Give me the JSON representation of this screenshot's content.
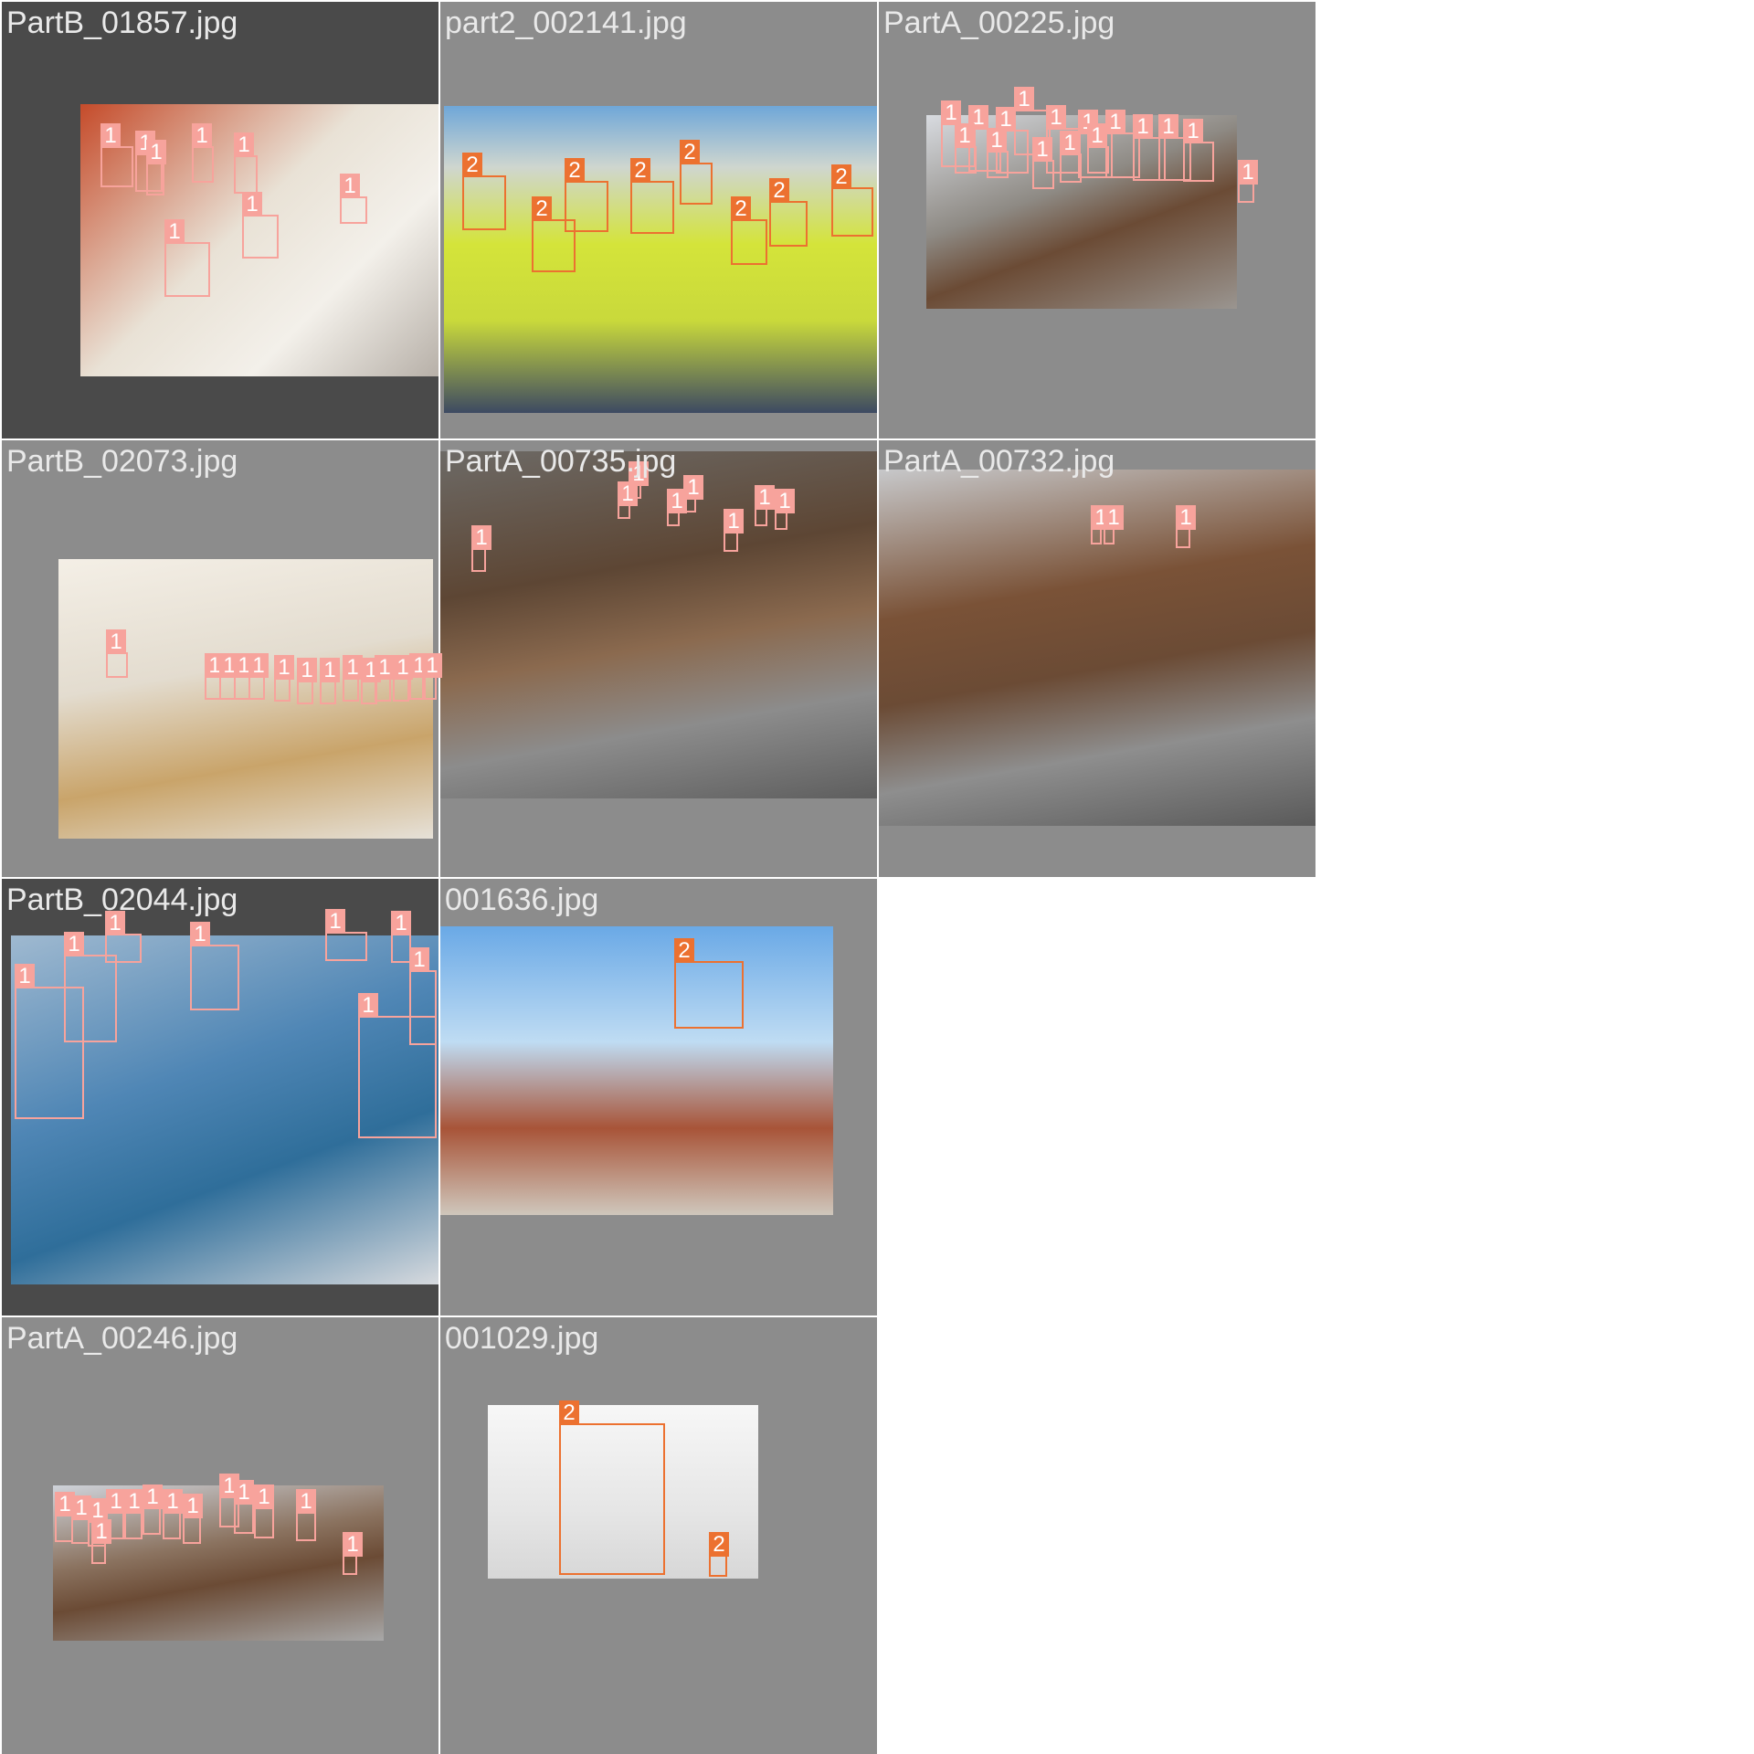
{
  "colors": {
    "class_1": "#f7a39c",
    "class_2": "#ec7130",
    "tile_bg": "#8c8c8c",
    "tile_bg_dark": "#4a4a4a"
  },
  "tiles": [
    {
      "filename": "PartB_01857.jpg",
      "dark": true,
      "photo": [
        86,
        112,
        392,
        298
      ],
      "photoColor": "linear-gradient(135deg,#c54b2a 0%,#e9e2d6 45%,#f3f0ea 70%,#b7b0a8 100%)",
      "boxes": [
        {
          "c": "1",
          "b": [
            110,
            160,
            36,
            45
          ]
        },
        {
          "c": "1",
          "b": [
            148,
            168,
            30,
            42
          ]
        },
        {
          "c": "1",
          "b": [
            160,
            178,
            20,
            36
          ]
        },
        {
          "c": "1",
          "b": [
            210,
            160,
            24,
            40
          ]
        },
        {
          "c": "1",
          "b": [
            256,
            170,
            26,
            42
          ]
        },
        {
          "c": "1",
          "b": [
            372,
            215,
            30,
            30
          ]
        },
        {
          "c": "1",
          "b": [
            265,
            235,
            40,
            48
          ]
        },
        {
          "c": "1",
          "b": [
            180,
            265,
            50,
            60
          ]
        }
      ]
    },
    {
      "filename": "part2_002141.jpg",
      "dark": false,
      "photo": [
        4,
        114,
        474,
        336
      ],
      "photoColor": "linear-gradient(180deg,#6fa7d8 0%,#cfd6cf 20%,#d4e43a 45%,#c9d93b 70%,#3d4a62 100%)",
      "boxes": [
        {
          "c": "2",
          "b": [
            506,
            192,
            48,
            60
          ]
        },
        {
          "c": "2",
          "b": [
            582,
            240,
            48,
            58
          ]
        },
        {
          "c": "2",
          "b": [
            618,
            198,
            48,
            56
          ]
        },
        {
          "c": "2",
          "b": [
            690,
            198,
            48,
            58
          ]
        },
        {
          "c": "2",
          "b": [
            744,
            178,
            36,
            46
          ]
        },
        {
          "c": "2",
          "b": [
            800,
            240,
            40,
            50
          ]
        },
        {
          "c": "2",
          "b": [
            842,
            220,
            42,
            50
          ]
        },
        {
          "c": "2",
          "b": [
            910,
            205,
            46,
            54
          ]
        }
      ]
    },
    {
      "filename": "PartA_00225.jpg",
      "dark": false,
      "photo": [
        52,
        124,
        340,
        212
      ],
      "photoColor": "linear-gradient(160deg,#d8dbe0 0%,#8e8a84 40%,#6b4b35 60%,#9a9590 100%)",
      "boxes": [
        {
          "c": "1",
          "b": [
            1030,
            135,
            38,
            48
          ]
        },
        {
          "c": "1",
          "b": [
            1060,
            140,
            36,
            48
          ]
        },
        {
          "c": "1",
          "b": [
            1090,
            142,
            36,
            48
          ]
        },
        {
          "c": "1",
          "b": [
            1110,
            120,
            40,
            50
          ]
        },
        {
          "c": "1",
          "b": [
            1145,
            140,
            38,
            50
          ]
        },
        {
          "c": "1",
          "b": [
            1180,
            145,
            38,
            50
          ]
        },
        {
          "c": "1",
          "b": [
            1210,
            145,
            38,
            50
          ]
        },
        {
          "c": "1",
          "b": [
            1240,
            150,
            36,
            48
          ]
        },
        {
          "c": "1",
          "b": [
            1268,
            150,
            36,
            48
          ]
        },
        {
          "c": "1",
          "b": [
            1295,
            155,
            34,
            44
          ]
        },
        {
          "c": "1",
          "b": [
            1045,
            160,
            24,
            30
          ]
        },
        {
          "c": "1",
          "b": [
            1080,
            165,
            24,
            30
          ]
        },
        {
          "c": "1",
          "b": [
            1130,
            175,
            24,
            32
          ]
        },
        {
          "c": "1",
          "b": [
            1160,
            168,
            24,
            32
          ]
        },
        {
          "c": "1",
          "b": [
            1190,
            160,
            24,
            30
          ]
        },
        {
          "c": "1",
          "b": [
            1355,
            200,
            18,
            22
          ]
        }
      ]
    },
    {
      "filename": "PartB_02073.jpg",
      "dark": false,
      "photo": [
        62,
        130,
        410,
        306
      ],
      "photoColor": "linear-gradient(170deg,#f4efe6 0%,#e3dccf 40%,#c9a46a 70%,#e6e1d8 100%)",
      "boxes": [
        {
          "c": "1",
          "b": [
            116,
            714,
            24,
            28
          ]
        },
        {
          "c": "1",
          "b": [
            224,
            740,
            18,
            26
          ]
        },
        {
          "c": "1",
          "b": [
            240,
            740,
            18,
            26
          ]
        },
        {
          "c": "1",
          "b": [
            256,
            740,
            18,
            26
          ]
        },
        {
          "c": "1",
          "b": [
            272,
            740,
            18,
            26
          ]
        },
        {
          "c": "1",
          "b": [
            300,
            742,
            18,
            26
          ]
        },
        {
          "c": "1",
          "b": [
            325,
            745,
            18,
            26
          ]
        },
        {
          "c": "1",
          "b": [
            350,
            745,
            18,
            26
          ]
        },
        {
          "c": "1",
          "b": [
            375,
            742,
            18,
            26
          ]
        },
        {
          "c": "1",
          "b": [
            395,
            745,
            18,
            26
          ]
        },
        {
          "c": "1",
          "b": [
            410,
            742,
            18,
            26
          ]
        },
        {
          "c": "1",
          "b": [
            430,
            742,
            18,
            26
          ]
        },
        {
          "c": "1",
          "b": [
            448,
            740,
            18,
            26
          ]
        },
        {
          "c": "1",
          "b": [
            462,
            740,
            16,
            26
          ]
        }
      ]
    },
    {
      "filename": "PartA_00735.jpg",
      "dark": false,
      "photo": [
        0,
        12,
        478,
        380
      ],
      "photoColor": "linear-gradient(170deg,#6d6a66 0%,#5d4634 35%,#8b6a4f 55%,#8c8c8c 75%,#5e5e5e 100%)",
      "boxes": [
        {
          "c": "1",
          "b": [
            516,
            600,
            16,
            26
          ]
        },
        {
          "c": "1",
          "b": [
            676,
            552,
            14,
            16
          ]
        },
        {
          "c": "1",
          "b": [
            688,
            530,
            14,
            16
          ]
        },
        {
          "c": "1",
          "b": [
            730,
            560,
            14,
            16
          ]
        },
        {
          "c": "1",
          "b": [
            748,
            545,
            14,
            16
          ]
        },
        {
          "c": "1",
          "b": [
            792,
            582,
            16,
            22
          ]
        },
        {
          "c": "1",
          "b": [
            826,
            556,
            14,
            20
          ]
        },
        {
          "c": "1",
          "b": [
            848,
            560,
            14,
            20
          ]
        }
      ]
    },
    {
      "filename": "PartA_00732.jpg",
      "dark": false,
      "photo": [
        0,
        32,
        478,
        390
      ],
      "photoColor": "linear-gradient(170deg,#c7c8ca 0%,#7a5237 35%,#6b4b35 55%,#8e8e8e 75%,#5a5a5a 100%)",
      "boxes": [
        {
          "c": "1",
          "b": [
            1194,
            578,
            12,
            18
          ]
        },
        {
          "c": "1",
          "b": [
            1208,
            578,
            12,
            18
          ]
        },
        {
          "c": "1",
          "b": [
            1287,
            578,
            16,
            22
          ]
        }
      ]
    },
    {
      "filename": "PartB_02044.jpg",
      "dark": true,
      "photo": [
        10,
        62,
        468,
        382
      ],
      "photoColor": "linear-gradient(160deg,#9fb9d0 0%,#4f86b5 40%,#2f6e9a 65%,#d7dade 100%)",
      "boxes": [
        {
          "c": "1",
          "b": [
            16,
            1080,
            76,
            145
          ]
        },
        {
          "c": "1",
          "b": [
            70,
            1045,
            58,
            96
          ]
        },
        {
          "c": "1",
          "b": [
            115,
            1022,
            40,
            32
          ]
        },
        {
          "c": "1",
          "b": [
            208,
            1034,
            54,
            72
          ]
        },
        {
          "c": "1",
          "b": [
            356,
            1020,
            46,
            32
          ]
        },
        {
          "c": "1",
          "b": [
            428,
            1022,
            22,
            32
          ]
        },
        {
          "c": "1",
          "b": [
            448,
            1062,
            30,
            82
          ]
        },
        {
          "c": "1",
          "b": [
            392,
            1112,
            86,
            134
          ]
        }
      ]
    },
    {
      "filename": "001636.jpg",
      "dark": false,
      "photo": [
        0,
        52,
        430,
        316
      ],
      "photoColor": "linear-gradient(180deg,#6aa9e6 0%,#bfdcf3 40%,#a85438 70%,#cfc7bc 100%)",
      "boxes": [
        {
          "c": "2",
          "b": [
            738,
            1052,
            76,
            74
          ]
        }
      ]
    },
    {
      "filename": "PartA_00246.jpg",
      "dark": false,
      "photo": [
        56,
        184,
        362,
        170
      ],
      "photoColor": "linear-gradient(170deg,#cfd3da 0%,#8b7360 40%,#6b4b35 60%,#a8a8a8 100%)",
      "boxes": [
        {
          "c": "1",
          "b": [
            60,
            1658,
            20,
            30
          ]
        },
        {
          "c": "1",
          "b": [
            78,
            1662,
            20,
            28
          ]
        },
        {
          "c": "1",
          "b": [
            96,
            1665,
            20,
            28
          ]
        },
        {
          "c": "1",
          "b": [
            116,
            1655,
            20,
            30
          ]
        },
        {
          "c": "1",
          "b": [
            136,
            1655,
            20,
            30
          ]
        },
        {
          "c": "1",
          "b": [
            156,
            1650,
            20,
            30
          ]
        },
        {
          "c": "1",
          "b": [
            178,
            1655,
            20,
            30
          ]
        },
        {
          "c": "1",
          "b": [
            200,
            1660,
            20,
            30
          ]
        },
        {
          "c": "1",
          "b": [
            240,
            1638,
            22,
            34
          ]
        },
        {
          "c": "1",
          "b": [
            256,
            1645,
            22,
            34
          ]
        },
        {
          "c": "1",
          "b": [
            278,
            1650,
            22,
            34
          ]
        },
        {
          "c": "1",
          "b": [
            324,
            1655,
            22,
            32
          ]
        },
        {
          "c": "1",
          "b": [
            100,
            1688,
            16,
            24
          ]
        },
        {
          "c": "1",
          "b": [
            375,
            1702,
            16,
            22
          ]
        }
      ]
    },
    {
      "filename": "001029.jpg",
      "dark": false,
      "photo": [
        52,
        96,
        296,
        190
      ],
      "photoColor": "linear-gradient(180deg,#f7f7f7 0%,#e6e6e6 60%,#d7d7d7 100%)",
      "boxes": [
        {
          "c": "2",
          "b": [
            612,
            1558,
            116,
            166
          ]
        },
        {
          "c": "2",
          "b": [
            776,
            1702,
            20,
            24
          ]
        }
      ]
    }
  ]
}
